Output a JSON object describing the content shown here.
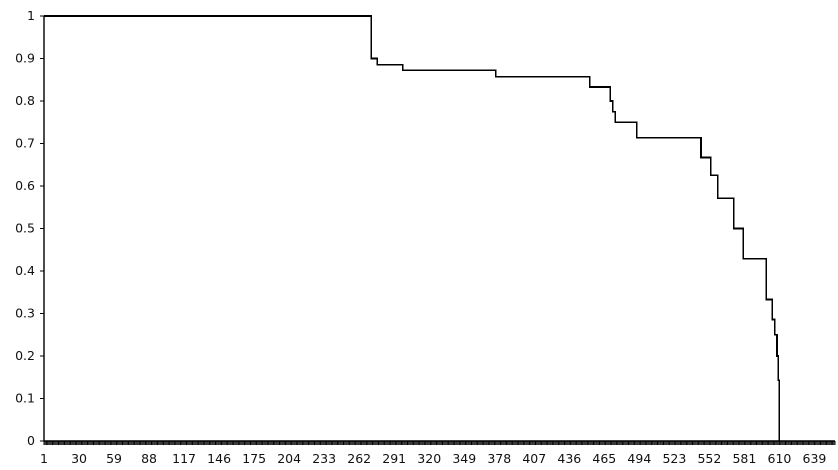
{
  "chart_data": {
    "type": "line",
    "title": "",
    "xlabel": "",
    "ylabel": "",
    "legend": "none",
    "grid": false,
    "xlim": [
      1,
      656
    ],
    "ylim": [
      0,
      1
    ],
    "x_tick_labels": [
      "1",
      "30",
      "59",
      "88",
      "117",
      "146",
      "175",
      "204",
      "233",
      "262",
      "291",
      "320",
      "349",
      "378",
      "407",
      "436",
      "465",
      "494",
      "523",
      "552",
      "581",
      "610",
      "639"
    ],
    "y_tick_labels": [
      "0",
      "0.1",
      "0.2",
      "0.3",
      "0.4",
      "0.5",
      "0.6",
      "0.7",
      "0.8",
      "0.9",
      "1"
    ],
    "series": [
      {
        "step": "post",
        "color": "#000000",
        "points": [
          {
            "x": 1,
            "y": 1.0
          },
          {
            "x": 272,
            "y": 0.9
          },
          {
            "x": 277,
            "y": 0.885
          },
          {
            "x": 298,
            "y": 0.872
          },
          {
            "x": 375,
            "y": 0.857
          },
          {
            "x": 453,
            "y": 0.833
          },
          {
            "x": 470,
            "y": 0.8
          },
          {
            "x": 472,
            "y": 0.775
          },
          {
            "x": 474,
            "y": 0.75
          },
          {
            "x": 492,
            "y": 0.714
          },
          {
            "x": 545,
            "y": 0.667
          },
          {
            "x": 553,
            "y": 0.625
          },
          {
            "x": 559,
            "y": 0.571
          },
          {
            "x": 572,
            "y": 0.5
          },
          {
            "x": 580,
            "y": 0.429
          },
          {
            "x": 599,
            "y": 0.333
          },
          {
            "x": 604,
            "y": 0.286
          },
          {
            "x": 606,
            "y": 0.25
          },
          {
            "x": 608,
            "y": 0.2
          },
          {
            "x": 609,
            "y": 0.143
          },
          {
            "x": 610,
            "y": 0.0
          }
        ]
      }
    ]
  }
}
